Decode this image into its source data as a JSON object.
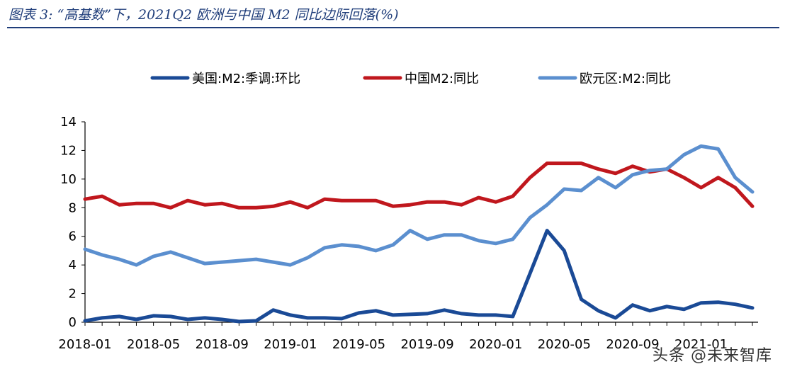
{
  "header": {
    "title": "图表 3:  “高基数”下，2021Q2 欧洲与中国 M2 同比边际回落(%)"
  },
  "watermark": "头条 @未来智库",
  "colors": {
    "us": "#1a4a96",
    "china": "#c0171d",
    "eurozone": "#5b8fcf",
    "axis": "#000000",
    "title": "#1f3d7a"
  },
  "chart_data": {
    "type": "line",
    "x": [
      "2018-01",
      "2018-02",
      "2018-03",
      "2018-04",
      "2018-05",
      "2018-06",
      "2018-07",
      "2018-08",
      "2018-09",
      "2018-10",
      "2018-11",
      "2018-12",
      "2019-01",
      "2019-02",
      "2019-03",
      "2019-04",
      "2019-05",
      "2019-06",
      "2019-07",
      "2019-08",
      "2019-09",
      "2019-10",
      "2019-11",
      "2019-12",
      "2020-01",
      "2020-02",
      "2020-03",
      "2020-04",
      "2020-05",
      "2020-06",
      "2020-07",
      "2020-08",
      "2020-09",
      "2020-10",
      "2020-11",
      "2020-12",
      "2021-01",
      "2021-02",
      "2021-03",
      "2021-04"
    ],
    "xticks": [
      "2018-01",
      "2018-05",
      "2018-09",
      "2019-01",
      "2019-05",
      "2019-09",
      "2020-01",
      "2020-05",
      "2020-09",
      "2021-01"
    ],
    "ylim": [
      0,
      14
    ],
    "yticks": [
      0,
      2,
      4,
      6,
      8,
      10,
      12,
      14
    ],
    "grid": false,
    "legend_position": "top",
    "series": [
      {
        "name": "美国:M2:季调:环比",
        "color_key": "us",
        "values": [
          0.1,
          0.3,
          0.4,
          0.2,
          0.45,
          0.4,
          0.2,
          0.3,
          0.2,
          0.05,
          0.1,
          0.85,
          0.5,
          0.3,
          0.3,
          0.25,
          0.65,
          0.8,
          0.5,
          0.55,
          0.6,
          0.85,
          0.6,
          0.5,
          0.5,
          0.4,
          3.4,
          6.4,
          5.0,
          1.6,
          0.8,
          0.3,
          1.2,
          0.8,
          1.1,
          0.9,
          1.35,
          1.4,
          1.25,
          1.0
        ]
      },
      {
        "name": "中国M2:同比",
        "color_key": "china",
        "values": [
          8.6,
          8.8,
          8.2,
          8.3,
          8.3,
          8.0,
          8.5,
          8.2,
          8.3,
          8.0,
          8.0,
          8.1,
          8.4,
          8.0,
          8.6,
          8.5,
          8.5,
          8.5,
          8.1,
          8.2,
          8.4,
          8.4,
          8.2,
          8.7,
          8.4,
          8.8,
          10.1,
          11.1,
          11.1,
          11.1,
          10.7,
          10.4,
          10.9,
          10.5,
          10.7,
          10.1,
          9.4,
          10.1,
          9.4,
          8.1
        ]
      },
      {
        "name": "欧元区:M2:同比",
        "color_key": "eurozone",
        "values": [
          5.1,
          4.7,
          4.4,
          4.0,
          4.6,
          4.9,
          4.5,
          4.1,
          4.2,
          4.3,
          4.4,
          4.2,
          4.0,
          4.5,
          5.2,
          5.4,
          5.3,
          5.0,
          5.4,
          6.4,
          5.8,
          6.1,
          6.1,
          5.7,
          5.5,
          5.8,
          7.3,
          8.2,
          9.3,
          9.2,
          10.1,
          9.4,
          10.3,
          10.6,
          10.7,
          11.7,
          12.3,
          12.1,
          10.1,
          9.1
        ]
      }
    ]
  }
}
